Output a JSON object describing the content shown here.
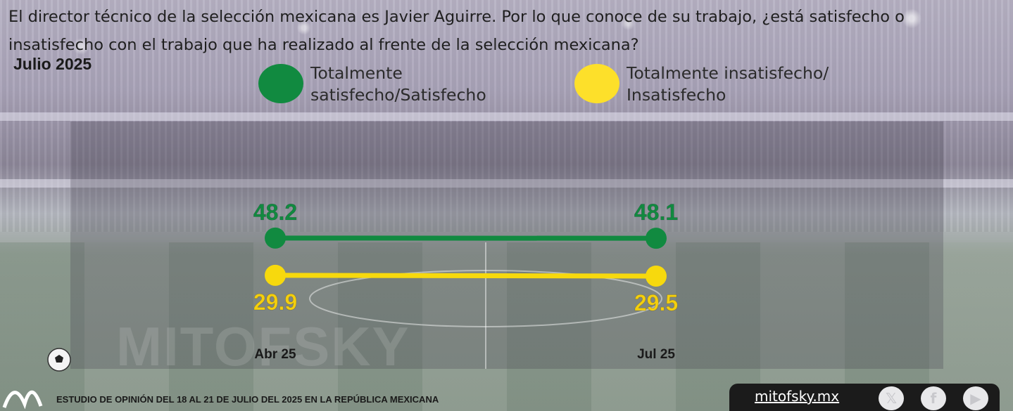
{
  "header": {
    "question": "El director técnico de la selección mexicana es Javier Aguirre. Por lo que conoce de su trabajo, ¿está satisfecho o insatisfecho con el trabajo que ha realizado al frente de la selección mexicana?",
    "period": "Julio 2025"
  },
  "legend": {
    "items": [
      {
        "label": "Totalmente\nsatisfecho/Satisfecho",
        "color": "#118a40"
      },
      {
        "label": "Totalmente insatisfecho/\nInsatisfecho",
        "color": "#fde02a"
      }
    ]
  },
  "chart_data": {
    "type": "line",
    "categories": [
      "Abr 25",
      "Jul 25"
    ],
    "series": [
      {
        "name": "Totalmente satisfecho/Satisfecho",
        "values": [
          48.2,
          48.1
        ],
        "color": "#118a40",
        "label_color": "#118a40"
      },
      {
        "name": "Totalmente insatisfecho/Insatisfecho",
        "values": [
          29.9,
          29.5
        ],
        "color": "#f7d90d",
        "label_color": "#f4cf0e"
      }
    ],
    "xlabel": "",
    "ylabel": "",
    "grid": false
  },
  "footer": {
    "study": "ESTUDIO DE OPINIÓN DEL 18 AL 21 DE JULIO DEL 2025 EN LA REPÚBLICA MEXICANA",
    "site": "mitofsky.mx",
    "social": [
      {
        "icon": "x-icon",
        "glyph": "𝕏"
      },
      {
        "icon": "facebook-icon",
        "glyph": "f"
      },
      {
        "icon": "youtube-icon",
        "glyph": "▶"
      }
    ]
  },
  "watermark": "MITOFSKY"
}
